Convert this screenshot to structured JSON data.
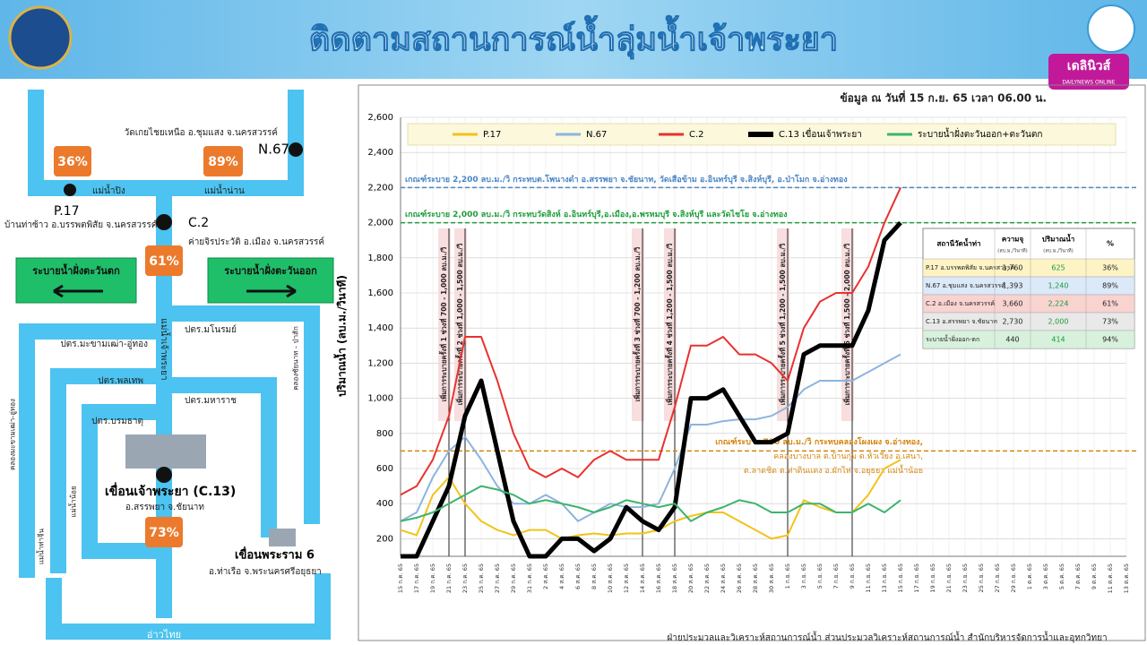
{
  "header": {
    "title": "ติดตามสถานการณ์น้ำลุ่มน้ำเจ้าพระยา",
    "logo_text": "เดลินิวส์",
    "logo_sub": "DAILYNEWS ONLINE",
    "data_time": "ข้อมูล ณ วันที่ 15 ก.ย. 65 เวลา 06.00 น."
  },
  "diagram": {
    "n67_place": "วัดเกยไชยเหนือ อ.ชุมแสง จ.นครสวรรค์",
    "n67": "N.67",
    "p17_pct": "36%",
    "n67_pct": "89%",
    "ping": "แม่น้ำปิง",
    "nan": "แม่น้ำน่าน",
    "p17": "P.17",
    "p17_place": "บ้านท่าซ้าว อ.บรรพตพิสัย จ.นครสวรรค์",
    "c2": "C.2",
    "c2_place": "ค่ายจิรประวัติ อ.เมือง จ.นครสวรรค์",
    "c2_pct": "61%",
    "west": "ระบายน้ำฝั่งตะวันตก",
    "east": "ระบายน้ำฝั่งตะวันออก",
    "manorom": "ปตร.มโนรมย์",
    "makhamtao": "ปตร.มะขามเฒ่า-อู่ทอง",
    "phonlathep": "ปตร.พลเทพ",
    "maharaj": "ปตร.มหาราช",
    "boromathat": "ปตร.บรมธาตุ",
    "chao_phraya": "แม่น้ำเจ้าพระยา",
    "chainat_pasak": "คลองชัยนาท - ป่าสัก",
    "khlong_makhamtao": "คลองมะขามเฒ่า-อู่ทอง",
    "noi": "แม่น้ำน้อย",
    "tha_chin": "แม่น้ำท่าจีน",
    "c13": "เขื่อนเจ้าพระยา (C.13)",
    "c13_place": "อ.สรรพยา จ.ชัยนาท",
    "c13_pct": "73%",
    "rama6": "เขื่อนพระราม 6",
    "rama6_place": "อ.ท่าเรือ จ.พระนครศรีอยุธยา",
    "gulf": "อ่าวไทย"
  },
  "chart_data": {
    "type": "line",
    "y_label": "ปริมาณน้ำ (ลบ.ม./วินาที)",
    "categories": [
      "15 ก.ค. 65",
      "17 ก.ค. 65",
      "19 ก.ค. 65",
      "21 ก.ค. 65",
      "23 ก.ค. 65",
      "25 ก.ค. 65",
      "27 ก.ค. 65",
      "29 ก.ค. 65",
      "31 ก.ค. 65",
      "2 ส.ค. 65",
      "4 ส.ค. 65",
      "6 ส.ค. 65",
      "8 ส.ค. 65",
      "10 ส.ค. 65",
      "12 ส.ค. 65",
      "14 ส.ค. 65",
      "16 ส.ค. 65",
      "18 ส.ค. 65",
      "20 ส.ค. 65",
      "22 ส.ค. 65",
      "24 ส.ค. 65",
      "26 ส.ค. 65",
      "28 ส.ค. 65",
      "30 ส.ค. 65",
      "1 ก.ย. 65",
      "3 ก.ย. 65",
      "5 ก.ย. 65",
      "7 ก.ย. 65",
      "9 ก.ย. 65",
      "11 ก.ย. 65",
      "13 ก.ย. 65",
      "15 ก.ย. 65",
      "17 ก.ย. 65",
      "19 ก.ย. 65",
      "21 ก.ย. 65",
      "23 ก.ย. 65",
      "25 ก.ย. 65",
      "27 ก.ย. 65",
      "29 ก.ย. 65",
      "1 ต.ค. 65",
      "3 ต.ค. 65",
      "5 ต.ค. 65",
      "7 ต.ค. 65",
      "9 ต.ค. 65",
      "11 ต.ค. 65",
      "13 ต.ค. 65"
    ],
    "series": [
      {
        "name": "P.17",
        "color": "#f2c318",
        "width": 2,
        "values": [
          250,
          220,
          450,
          550,
          400,
          300,
          250,
          220,
          250,
          250,
          200,
          220,
          230,
          220,
          230,
          230,
          250,
          300,
          330,
          350,
          350,
          300,
          250,
          200,
          220,
          420,
          380,
          350,
          350,
          450,
          600,
          650,
          null,
          null,
          null,
          null,
          null,
          null,
          null,
          null,
          null,
          null,
          null,
          null,
          null,
          null
        ]
      },
      {
        "name": "N.67",
        "color": "#8db4de",
        "width": 2,
        "values": [
          300,
          350,
          550,
          700,
          780,
          650,
          500,
          400,
          400,
          450,
          400,
          300,
          350,
          400,
          380,
          380,
          400,
          600,
          850,
          850,
          870,
          880,
          880,
          900,
          950,
          1050,
          1100,
          1100,
          1100,
          1150,
          1200,
          1250,
          null,
          null,
          null,
          null,
          null,
          null,
          null,
          null,
          null,
          null,
          null,
          null,
          null,
          null
        ]
      },
      {
        "name": "C.2",
        "color": "#e8322f",
        "width": 2,
        "values": [
          450,
          500,
          650,
          900,
          1350,
          1350,
          1100,
          800,
          600,
          550,
          600,
          550,
          650,
          700,
          650,
          650,
          650,
          950,
          1300,
          1300,
          1350,
          1250,
          1250,
          1200,
          1100,
          1400,
          1550,
          1600,
          1600,
          1750,
          2000,
          2200,
          null,
          null,
          null,
          null,
          null,
          null,
          null,
          null,
          null,
          null,
          null,
          null,
          null,
          null
        ]
      },
      {
        "name": "C.13 เขื่อนเจ้าพระยา",
        "color": "#000000",
        "width": 5,
        "values": [
          100,
          100,
          300,
          500,
          900,
          1100,
          700,
          300,
          100,
          100,
          200,
          200,
          130,
          200,
          380,
          300,
          250,
          380,
          1000,
          1000,
          1050,
          900,
          750,
          750,
          800,
          1250,
          1300,
          1300,
          1300,
          1500,
          1900,
          2000,
          null,
          null,
          null,
          null,
          null,
          null,
          null,
          null,
          null,
          null,
          null,
          null,
          null,
          null
        ]
      },
      {
        "name": "ระบายน้ำฝั่งตะวันออก+ตะวันตก",
        "color": "#3cb46e",
        "width": 2,
        "values": [
          300,
          320,
          350,
          400,
          450,
          500,
          480,
          450,
          400,
          420,
          400,
          380,
          350,
          380,
          420,
          400,
          380,
          400,
          300,
          350,
          380,
          420,
          400,
          350,
          350,
          400,
          400,
          350,
          350,
          400,
          350,
          420,
          null,
          null,
          null,
          null,
          null,
          null,
          null,
          null,
          null,
          null,
          null,
          null,
          null,
          null
        ]
      }
    ],
    "ylim": [
      100,
      2600
    ],
    "yticks": [
      {
        "value": 200,
        "label": "200"
      },
      {
        "value": 400,
        "label": "400"
      },
      {
        "value": 600,
        "label": "600"
      },
      {
        "value": 800,
        "label": "800"
      },
      {
        "value": 1000,
        "label": "1,000"
      },
      {
        "value": 1200,
        "label": "1,200"
      },
      {
        "value": 1400,
        "label": "1,400"
      },
      {
        "value": 1600,
        "label": "1,600"
      },
      {
        "value": 1800,
        "label": "1,800"
      },
      {
        "value": 2000,
        "label": "2,000"
      },
      {
        "value": 2200,
        "label": "2,200"
      },
      {
        "value": 2400,
        "label": "2,400"
      },
      {
        "value": 2600,
        "label": "2,600"
      }
    ],
    "grid": true,
    "reference_lines": [
      {
        "value": 2200,
        "color": "#4a86c5",
        "label": [
          "เกณฑ์ระบาย 2,200 ลบ.ม./วิ กระทบต.โพนางดำ อ.สรรพยา จ.ชัยนาท, วัดเสือข้าม อ.อินทร์บุรี จ.สิงห์บุรี, อ.ป่าโมก จ.อ่างทอง"
        ]
      },
      {
        "value": 2000,
        "color": "#1e9e3a",
        "label": [
          "เกณฑ์ระบาย 2,000 ลบ.ม./วิ กระทบวัดสิงห์ อ.อินทร์บุรี,อ.เมือง,อ.พรหมบุรี จ.สิงห์บุรี และวัดไชโย จ.อ่างทอง"
        ]
      },
      {
        "value": 700,
        "color": "#d4860f",
        "label": [
          "เกณฑ์ระบาย 700 ลบ.ม./วิ กระทบคลองโผงเผง จ.อ่างทอง,",
          "คลองบางบาล ต.บ้านกุ่ม ต.หัวเวียง อ.เสนา,",
          "ต.ลาดชิด ต.ท่าดินแดง อ.ผักไห่ จ.อยุธยา แม่น้ำน้อย"
        ]
      }
    ],
    "events": [
      {
        "x": "21 ก.ค. 65",
        "label": "เพิ่มการระบายครั้งที่ 1 ช่วงที่ 700 - 1,000 ลบ.ม./วิ"
      },
      {
        "x": "23 ก.ค. 65",
        "label": "เพิ่มการระบายครั้งที่ 2 ช่วงที่ 1,000 - 1,500 ลบ.ม./วิ"
      },
      {
        "x": "14 ส.ค. 65",
        "label": "เพิ่มการระบายครั้งที่ 3 ช่วงที่ 700 - 1,200 ลบ.ม./วิ"
      },
      {
        "x": "18 ส.ค. 65",
        "label": "เพิ่มการระบายครั้งที่ 4 ช่วงที่ 1,200 - 1,500 ลบ.ม./วิ"
      },
      {
        "x": "1 ก.ย. 65",
        "label": "เพิ่มการระบายครั้งที่ 5 ช่วงที่ 1,200 - 1,500 ลบ.ม./วิ"
      },
      {
        "x": "9 ก.ย. 65",
        "label": "เพิ่มการระบายครั้งที่ 6 ช่วงที่ 1,500 - 2,000 ลบ.ม./วิ"
      }
    ]
  },
  "table": {
    "header": [
      "สถานีวัดน้ำท่า",
      "ความจุ",
      "ปริมาณน้ำ",
      "%"
    ],
    "units": [
      "(ลบ.ม./วินาที)",
      "(ลบ.ม./วินาที)"
    ],
    "row_colors": [
      "#fdf3c4",
      "#dbe9f8",
      "#f9d3d0",
      "#e9e9e9",
      "#d8f1dc"
    ],
    "rows": [
      [
        "P.17 อ.บรรพตพิสัย จ.นครสวรรค์",
        "1,760",
        "625",
        "36%"
      ],
      [
        "N.67 อ.ชุมแสง จ.นครสวรรค์",
        "1,393",
        "1,240",
        "89%"
      ],
      [
        "C.2 อ.เมือง จ.นครสวรรค์",
        "3,660",
        "2,224",
        "61%"
      ],
      [
        "C.13 อ.สรรพยา จ.ชัยนาท",
        "2,730",
        "2,000",
        "73%"
      ],
      [
        "ระบายน้ำฝั่งออก-ตก",
        "440",
        "414",
        "94%"
      ]
    ]
  },
  "footer": "ฝ่ายประมวลและวิเคราะห์สถานการณ์น้ำ ส่วนประมวลวิเคราะห์สถานการณ์น้ำ สำนักบริหารจัดการน้ำและอุทกวิทยา"
}
